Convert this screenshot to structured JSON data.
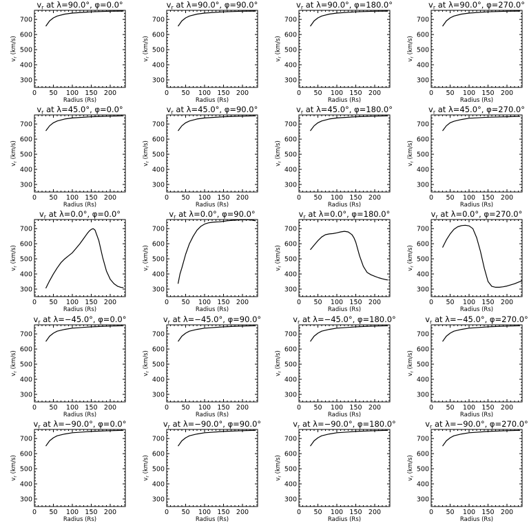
{
  "figure": {
    "xlabel": "Radius (Rs)",
    "ylabel": "vr (km/s)",
    "xlim": [
      0,
      240
    ],
    "ylim": [
      250,
      760
    ],
    "xticks": [
      "0",
      "50",
      "100",
      "150",
      "200"
    ],
    "yticks": [
      "300",
      "400",
      "500",
      "600",
      "700"
    ],
    "line_color": "#000000"
  },
  "chart_data": [
    {
      "type": "line",
      "title": "vr at λ=90.0°, φ=0.0°",
      "xlabel": "Radius (Rs)",
      "ylabel": "vr (km/s)",
      "xlim": [
        0,
        240
      ],
      "ylim": [
        250,
        760
      ],
      "series": [
        {
          "x": [
            30,
            40,
            50,
            60,
            80,
            100,
            150,
            200,
            235
          ],
          "y": [
            655,
            690,
            710,
            722,
            735,
            742,
            750,
            754,
            755
          ]
        }
      ]
    },
    {
      "type": "line",
      "title": "vr at λ=90.0°, φ=90.0°",
      "xlabel": "Radius (Rs)",
      "ylabel": "vr (km/s)",
      "xlim": [
        0,
        240
      ],
      "ylim": [
        250,
        760
      ],
      "series": [
        {
          "x": [
            30,
            40,
            50,
            60,
            80,
            100,
            150,
            200,
            235
          ],
          "y": [
            655,
            690,
            710,
            722,
            735,
            742,
            750,
            754,
            755
          ]
        }
      ]
    },
    {
      "type": "line",
      "title": "vr at λ=90.0°, φ=180.0°",
      "xlabel": "Radius (Rs)",
      "ylabel": "vr (km/s)",
      "xlim": [
        0,
        240
      ],
      "ylim": [
        250,
        760
      ],
      "series": [
        {
          "x": [
            30,
            40,
            50,
            60,
            80,
            100,
            150,
            200,
            235
          ],
          "y": [
            655,
            690,
            710,
            722,
            735,
            742,
            750,
            754,
            755
          ]
        }
      ]
    },
    {
      "type": "line",
      "title": "vr at λ=90.0°, φ=270.0°",
      "xlabel": "Radius (Rs)",
      "ylabel": "vr (km/s)",
      "xlim": [
        0,
        240
      ],
      "ylim": [
        250,
        760
      ],
      "series": [
        {
          "x": [
            30,
            40,
            50,
            60,
            80,
            100,
            150,
            200,
            235
          ],
          "y": [
            655,
            690,
            710,
            722,
            735,
            742,
            750,
            754,
            755
          ]
        }
      ]
    },
    {
      "type": "line",
      "title": "vr at λ=45.0°, φ=0.0°",
      "xlabel": "Radius (Rs)",
      "ylabel": "vr (km/s)",
      "xlim": [
        0,
        240
      ],
      "ylim": [
        250,
        760
      ],
      "series": [
        {
          "x": [
            30,
            40,
            50,
            60,
            80,
            100,
            150,
            200,
            235
          ],
          "y": [
            655,
            688,
            708,
            720,
            733,
            740,
            748,
            752,
            754
          ]
        }
      ]
    },
    {
      "type": "line",
      "title": "vr at λ=45.0°, φ=90.0°",
      "xlabel": "Radius (Rs)",
      "ylabel": "vr (km/s)",
      "xlim": [
        0,
        240
      ],
      "ylim": [
        250,
        760
      ],
      "series": [
        {
          "x": [
            30,
            40,
            50,
            60,
            80,
            100,
            150,
            200,
            235
          ],
          "y": [
            655,
            688,
            708,
            720,
            733,
            740,
            748,
            752,
            754
          ]
        }
      ]
    },
    {
      "type": "line",
      "title": "vr at λ=45.0°, φ=180.0°",
      "xlabel": "Radius (Rs)",
      "ylabel": "vr (km/s)",
      "xlim": [
        0,
        240
      ],
      "ylim": [
        250,
        760
      ],
      "series": [
        {
          "x": [
            30,
            40,
            50,
            60,
            80,
            100,
            150,
            200,
            235
          ],
          "y": [
            655,
            688,
            708,
            720,
            733,
            740,
            748,
            752,
            754
          ]
        }
      ]
    },
    {
      "type": "line",
      "title": "vr at λ=45.0°, φ=270.0°",
      "xlabel": "Radius (Rs)",
      "ylabel": "vr (km/s)",
      "xlim": [
        0,
        240
      ],
      "ylim": [
        250,
        760
      ],
      "series": [
        {
          "x": [
            30,
            40,
            50,
            60,
            80,
            100,
            150,
            200,
            235
          ],
          "y": [
            655,
            688,
            708,
            718,
            730,
            738,
            745,
            748,
            750
          ]
        }
      ]
    },
    {
      "type": "line",
      "title": "vr at λ=0.0°, φ=0.0°",
      "xlabel": "Radius (Rs)",
      "ylabel": "vr (km/s)",
      "xlim": [
        0,
        240
      ],
      "ylim": [
        250,
        760
      ],
      "series": [
        {
          "x": [
            30,
            40,
            50,
            60,
            70,
            80,
            90,
            100,
            110,
            120,
            130,
            140,
            145,
            150,
            155,
            160,
            170,
            180,
            190,
            200,
            210,
            220,
            230,
            235
          ],
          "y": [
            305,
            355,
            400,
            440,
            475,
            500,
            520,
            540,
            570,
            600,
            635,
            670,
            685,
            695,
            700,
            690,
            620,
            510,
            420,
            365,
            335,
            318,
            310,
            310
          ]
        }
      ]
    },
    {
      "type": "line",
      "title": "vr at λ=0.0°, φ=90.0°",
      "xlabel": "Radius (Rs)",
      "ylabel": "vr (km/s)",
      "xlim": [
        0,
        240
      ],
      "ylim": [
        250,
        760
      ],
      "series": [
        {
          "x": [
            30,
            35,
            40,
            50,
            60,
            70,
            80,
            90,
            100,
            110,
            120,
            130,
            140,
            150,
            160,
            180,
            200,
            220,
            235
          ],
          "y": [
            335,
            400,
            440,
            530,
            600,
            650,
            690,
            715,
            730,
            738,
            742,
            744,
            745,
            748,
            752,
            756,
            758,
            758,
            752
          ]
        }
      ]
    },
    {
      "type": "line",
      "title": "vr at λ=0.0°, φ=180.0°",
      "xlabel": "Radius (Rs)",
      "ylabel": "vr (km/s)",
      "xlim": [
        0,
        240
      ],
      "ylim": [
        250,
        760
      ],
      "series": [
        {
          "x": [
            30,
            40,
            50,
            60,
            70,
            80,
            90,
            100,
            110,
            120,
            130,
            140,
            145,
            150,
            160,
            170,
            180,
            190,
            200,
            210,
            220,
            230,
            235
          ],
          "y": [
            560,
            590,
            620,
            645,
            660,
            665,
            667,
            672,
            678,
            682,
            678,
            660,
            640,
            610,
            520,
            450,
            410,
            395,
            385,
            375,
            368,
            362,
            360
          ]
        }
      ]
    },
    {
      "type": "line",
      "title": "vr at λ=0.0°, φ=270.0°",
      "xlabel": "Radius (Rs)",
      "ylabel": "vr (km/s)",
      "xlim": [
        0,
        240
      ],
      "ylim": [
        250,
        760
      ],
      "series": [
        {
          "x": [
            30,
            40,
            50,
            60,
            70,
            80,
            90,
            100,
            110,
            120,
            130,
            140,
            150,
            160,
            170,
            180,
            190,
            200,
            210,
            220,
            230,
            240
          ],
          "y": [
            575,
            625,
            665,
            695,
            712,
            720,
            722,
            718,
            700,
            640,
            550,
            440,
            350,
            318,
            312,
            312,
            315,
            320,
            328,
            335,
            345,
            355
          ]
        }
      ]
    },
    {
      "type": "line",
      "title": "vr at λ=−45.0°, φ=0.0°",
      "xlabel": "Radius (Rs)",
      "ylabel": "vr (km/s)",
      "xlim": [
        0,
        240
      ],
      "ylim": [
        250,
        760
      ],
      "series": [
        {
          "x": [
            30,
            40,
            50,
            60,
            80,
            100,
            150,
            200,
            235
          ],
          "y": [
            650,
            685,
            705,
            718,
            730,
            738,
            747,
            752,
            754
          ]
        }
      ]
    },
    {
      "type": "line",
      "title": "vr at λ=−45.0°, φ=90.0°",
      "xlabel": "Radius (Rs)",
      "ylabel": "vr (km/s)",
      "xlim": [
        0,
        240
      ],
      "ylim": [
        250,
        760
      ],
      "series": [
        {
          "x": [
            30,
            40,
            50,
            60,
            80,
            100,
            150,
            200,
            235
          ],
          "y": [
            650,
            685,
            705,
            718,
            730,
            738,
            747,
            752,
            754
          ]
        }
      ]
    },
    {
      "type": "line",
      "title": "vr at λ=−45.0°, φ=180.0°",
      "xlabel": "Radius (Rs)",
      "ylabel": "vr (km/s)",
      "xlim": [
        0,
        240
      ],
      "ylim": [
        250,
        760
      ],
      "series": [
        {
          "x": [
            30,
            40,
            50,
            60,
            80,
            100,
            150,
            200,
            235
          ],
          "y": [
            650,
            685,
            705,
            718,
            730,
            738,
            747,
            752,
            754
          ]
        }
      ]
    },
    {
      "type": "line",
      "title": "vr at λ=−45.0°, φ=270.0°",
      "xlabel": "Radius (Rs)",
      "ylabel": "vr (km/s)",
      "xlim": [
        0,
        240
      ],
      "ylim": [
        250,
        760
      ],
      "series": [
        {
          "x": [
            30,
            40,
            50,
            60,
            80,
            100,
            150,
            200,
            235
          ],
          "y": [
            650,
            685,
            705,
            718,
            730,
            738,
            747,
            752,
            754
          ]
        }
      ]
    },
    {
      "type": "line",
      "title": "vr at λ=−90.0°, φ=0.0°",
      "xlabel": "Radius (Rs)",
      "ylabel": "vr (km/s)",
      "xlim": [
        0,
        240
      ],
      "ylim": [
        250,
        760
      ],
      "series": [
        {
          "x": [
            30,
            40,
            50,
            60,
            80,
            100,
            150,
            200,
            235
          ],
          "y": [
            650,
            685,
            705,
            718,
            730,
            738,
            747,
            752,
            754
          ]
        }
      ]
    },
    {
      "type": "line",
      "title": "vr at λ=−90.0°, φ=90.0°",
      "xlabel": "Radius (Rs)",
      "ylabel": "vr (km/s)",
      "xlim": [
        0,
        240
      ],
      "ylim": [
        250,
        760
      ],
      "series": [
        {
          "x": [
            30,
            40,
            50,
            60,
            80,
            100,
            150,
            200,
            235
          ],
          "y": [
            650,
            685,
            705,
            718,
            730,
            738,
            747,
            752,
            754
          ]
        }
      ]
    },
    {
      "type": "line",
      "title": "vr at λ=−90.0°, φ=180.0°",
      "xlabel": "Radius (Rs)",
      "ylabel": "vr (km/s)",
      "xlim": [
        0,
        240
      ],
      "ylim": [
        250,
        760
      ],
      "series": [
        {
          "x": [
            30,
            40,
            50,
            60,
            80,
            100,
            150,
            200,
            235
          ],
          "y": [
            650,
            685,
            705,
            718,
            730,
            738,
            747,
            752,
            754
          ]
        }
      ]
    },
    {
      "type": "line",
      "title": "vr at λ=−90.0°, φ=270.0°",
      "xlabel": "Radius (Rs)",
      "ylabel": "vr (km/s)",
      "xlim": [
        0,
        240
      ],
      "ylim": [
        250,
        760
      ],
      "series": [
        {
          "x": [
            30,
            40,
            50,
            60,
            80,
            100,
            150,
            200,
            235
          ],
          "y": [
            650,
            685,
            705,
            718,
            730,
            738,
            747,
            752,
            754
          ]
        }
      ]
    }
  ]
}
